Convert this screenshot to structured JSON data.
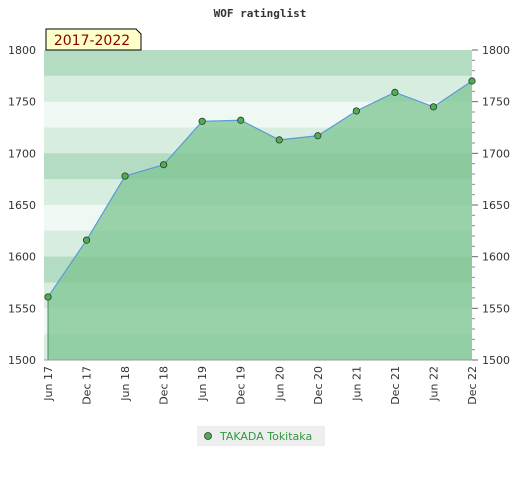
{
  "chart_data": {
    "type": "area",
    "title": "WOF ratinglist",
    "period_badge": "2017-2022",
    "x": [
      "Jun 17",
      "Dec 17",
      "Jun 18",
      "Dec 18",
      "Jun 19",
      "Dec 19",
      "Jun 20",
      "Dec 20",
      "Jun 21",
      "Dec 21",
      "Jun 22",
      "Dec 22"
    ],
    "series": [
      {
        "name": "TAKADA Tokitaka",
        "values": [
          1561,
          1616,
          1678,
          1689,
          1731,
          1732,
          1713,
          1717,
          1741,
          1759,
          1745,
          1770
        ]
      }
    ],
    "ylim": [
      1500,
      1800
    ],
    "yticks": [
      1500,
      1550,
      1600,
      1650,
      1700,
      1750,
      1800
    ],
    "yticks_right": [
      1500,
      1550,
      1600,
      1650,
      1700,
      1750,
      1800
    ],
    "grid": "horizontal bands",
    "legend_position": "bottom",
    "colors": {
      "line": "#5b9bd5",
      "marker": "#4caf50",
      "area": "#7cc490",
      "band_light": "#d6ede0",
      "band_lighter": "#f0f8f3",
      "band_mid": "#b4dcc2",
      "badge_bg": "#ffffc8",
      "badge_text": "#8b0000",
      "legend_text": "#2e9a3e"
    }
  }
}
